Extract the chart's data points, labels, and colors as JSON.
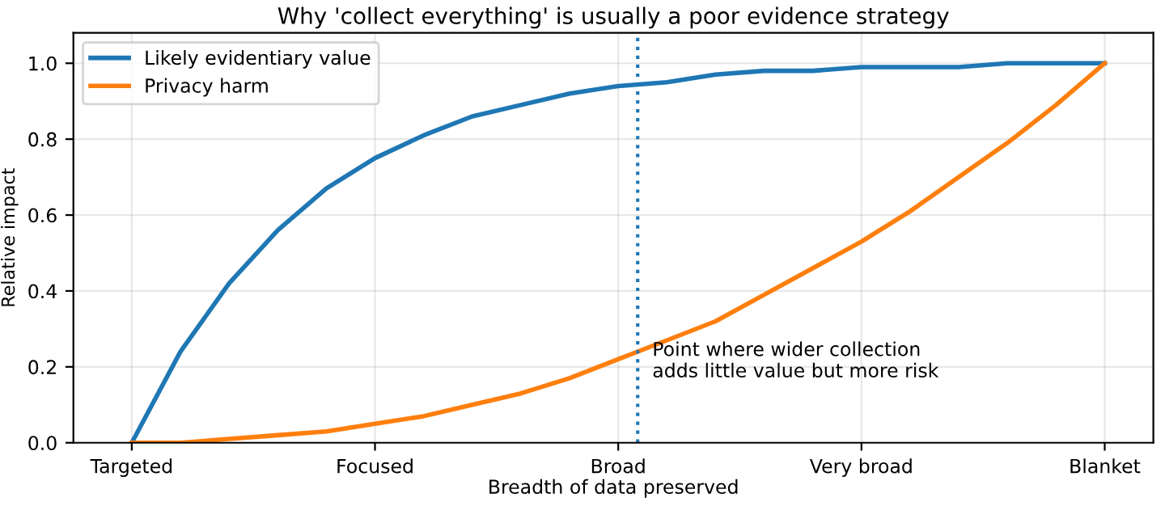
{
  "chart_data": {
    "type": "line",
    "title": "Why 'collect everything' is usually a poor evidence strategy",
    "xlabel": "Breadth of data preserved",
    "ylabel": "Relative impact",
    "categories": [
      "Targeted",
      null,
      null,
      null,
      null,
      "Focused",
      null,
      null,
      null,
      null,
      "Broad",
      null,
      null,
      null,
      null,
      "Very broad",
      null,
      null,
      null,
      null,
      "Blanket"
    ],
    "series": [
      {
        "name": "Likely evidentiary value",
        "color": "#1f77b4",
        "values": [
          0,
          0.24,
          0.42,
          0.56,
          0.67,
          0.75,
          0.81,
          0.86,
          0.89,
          0.92,
          0.94,
          0.95,
          0.97,
          0.98,
          0.98,
          0.99,
          0.99,
          0.99,
          1.0,
          1.0,
          1.0
        ]
      },
      {
        "name": "Privacy harm",
        "color": "#ff7f0e",
        "values": [
          0,
          0,
          0.01,
          0.02,
          0.03,
          0.05,
          0.07,
          0.1,
          0.13,
          0.17,
          0.22,
          0.27,
          0.32,
          0.39,
          0.46,
          0.53,
          0.61,
          0.7,
          0.79,
          0.89,
          1.0
        ]
      }
    ],
    "ylim": [
      0,
      1.08
    ],
    "yticks": [
      {
        "value": 0,
        "label": "0.0"
      },
      {
        "value": 0.2,
        "label": "0.2"
      },
      {
        "value": 0.4,
        "label": "0.4"
      },
      {
        "value": 0.6,
        "label": "0.6"
      },
      {
        "value": 0.8,
        "label": "0.8"
      },
      {
        "value": 1.0,
        "label": "1.0"
      }
    ],
    "annotations": [
      "Point where wider collection\nadds little value but more risk"
    ],
    "grid": true,
    "legend": "top left",
    "marker": "none",
    "line_style": "solid"
  }
}
